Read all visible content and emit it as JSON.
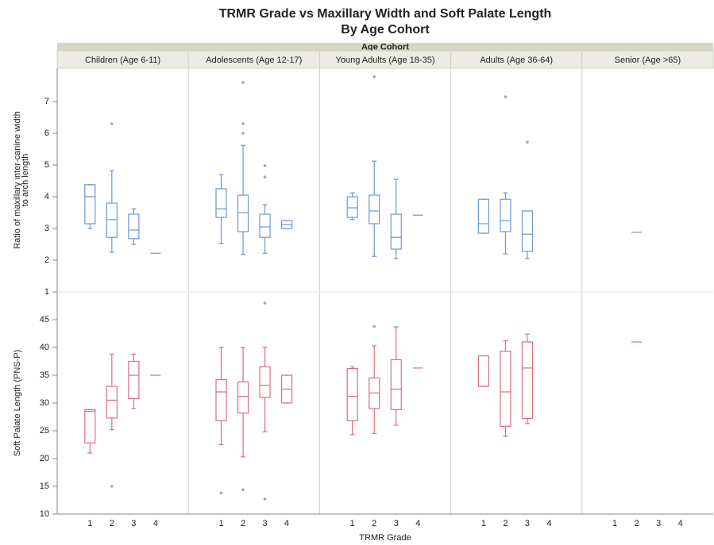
{
  "chart_data": {
    "type": "box",
    "title": "TRMR Grade vs Maxillary Width and Soft Palate Length",
    "subtitle": "By Age Cohort",
    "facet_label": "Age Cohort",
    "panels": [
      "Children (Age 6-11)",
      "Adolescents (Age 12-17)",
      "Young Adults (Age 18-35)",
      "Adults (Age 36-64)",
      "Senior (Age >65)"
    ],
    "categories": [
      "1",
      "2",
      "3",
      "4"
    ],
    "xlabel": "TRMR Grade",
    "outlier_color": "#a8a8a8",
    "rows": [
      {
        "ylabel": [
          "Ratio of maxillary inter-canine width",
          "to arch length"
        ],
        "color": "#6f95d6",
        "ylim": [
          1,
          8.05
        ],
        "yticks": [
          1,
          2,
          3,
          4,
          5,
          6,
          7
        ],
        "boxes": [
          [
            {
              "min": 3.0,
              "q1": 3.15,
              "median": 4.0,
              "q3": 4.38,
              "max": 4.38
            },
            {
              "min": 2.25,
              "q1": 2.72,
              "median": 3.28,
              "q3": 3.8,
              "max": 4.82,
              "outliers": [
                6.3
              ]
            },
            {
              "min": 2.5,
              "q1": 2.68,
              "median": 2.95,
              "q3": 3.45,
              "max": 3.62
            },
            {
              "median": 2.22
            }
          ],
          [
            {
              "min": 2.52,
              "q1": 3.35,
              "median": 3.62,
              "q3": 4.25,
              "max": 4.7
            },
            {
              "min": 2.18,
              "q1": 2.9,
              "median": 3.5,
              "q3": 4.05,
              "max": 5.62,
              "outliers": [
                6.0,
                6.3,
                7.6
              ]
            },
            {
              "min": 2.22,
              "q1": 2.72,
              "median": 3.05,
              "q3": 3.45,
              "max": 3.75,
              "outliers": [
                4.62,
                4.98
              ]
            },
            {
              "min": 3.0,
              "q1": 3.0,
              "median": 3.12,
              "q3": 3.25,
              "max": 3.25
            }
          ],
          [
            {
              "min": 3.28,
              "q1": 3.35,
              "median": 3.65,
              "q3": 4.0,
              "max": 4.12
            },
            {
              "min": 2.12,
              "q1": 3.15,
              "median": 3.55,
              "q3": 4.05,
              "max": 5.12,
              "outliers": [
                7.78
              ]
            },
            {
              "min": 2.05,
              "q1": 2.35,
              "median": 2.72,
              "q3": 3.45,
              "max": 4.55
            },
            {
              "median": 3.42
            }
          ],
          [
            {
              "min": 2.85,
              "q1": 2.85,
              "median": 3.15,
              "q3": 3.92,
              "max": 3.92
            },
            {
              "min": 2.2,
              "q1": 2.9,
              "median": 3.25,
              "q3": 3.92,
              "max": 4.12,
              "outliers": [
                7.15
              ]
            },
            {
              "min": 2.05,
              "q1": 2.28,
              "median": 2.82,
              "q3": 3.55,
              "max": 3.55,
              "outliers": [
                5.72
              ]
            },
            null
          ],
          [
            null,
            {
              "median": 2.88
            },
            null,
            null
          ]
        ]
      },
      {
        "ylabel": [
          "Soft Palate Length (PNS-P)"
        ],
        "color": "#d9707e",
        "ylim": [
          10,
          50
        ],
        "yticks": [
          10,
          15,
          20,
          25,
          30,
          35,
          40,
          45
        ],
        "boxes": [
          [
            {
              "min": 21,
              "q1": 22.8,
              "median": 28.5,
              "q3": 28.8,
              "max": 28.8
            },
            {
              "min": 25.2,
              "q1": 27.3,
              "median": 30.5,
              "q3": 33,
              "max": 38.8,
              "outliers": [
                15
              ]
            },
            {
              "min": 29,
              "q1": 30.8,
              "median": 35,
              "q3": 37.5,
              "max": 38.8
            },
            {
              "median": 35
            }
          ],
          [
            {
              "min": 22.5,
              "q1": 26.8,
              "median": 32,
              "q3": 34.2,
              "max": 40,
              "outliers": [
                13.8
              ]
            },
            {
              "min": 20.3,
              "q1": 28.2,
              "median": 31.2,
              "q3": 33.8,
              "max": 40,
              "outliers": [
                14.4
              ]
            },
            {
              "min": 24.8,
              "q1": 31,
              "median": 33.2,
              "q3": 36.5,
              "max": 40,
              "outliers": [
                12.7,
                48
              ]
            },
            {
              "min": 30,
              "q1": 30,
              "median": 32.5,
              "q3": 35,
              "max": 35
            }
          ],
          [
            {
              "min": 24.3,
              "q1": 26.8,
              "median": 31.2,
              "q3": 36.2,
              "max": 36.5
            },
            {
              "min": 24.5,
              "q1": 29,
              "median": 31.8,
              "q3": 34.5,
              "max": 40.3,
              "outliers": [
                43.8
              ]
            },
            {
              "min": 26,
              "q1": 28.8,
              "median": 32.5,
              "q3": 37.8,
              "max": 43.7
            },
            {
              "median": 36.3
            }
          ],
          [
            {
              "min": 33,
              "q1": 33,
              "median": 33,
              "q3": 38.5,
              "max": 38.5
            },
            {
              "min": 24,
              "q1": 25.8,
              "median": 32,
              "q3": 39.3,
              "max": 41.2
            },
            {
              "min": 26.3,
              "q1": 27.2,
              "median": 36.3,
              "q3": 41,
              "max": 42.4
            },
            null
          ],
          [
            null,
            {
              "median": 41
            },
            null,
            null
          ]
        ]
      }
    ]
  }
}
